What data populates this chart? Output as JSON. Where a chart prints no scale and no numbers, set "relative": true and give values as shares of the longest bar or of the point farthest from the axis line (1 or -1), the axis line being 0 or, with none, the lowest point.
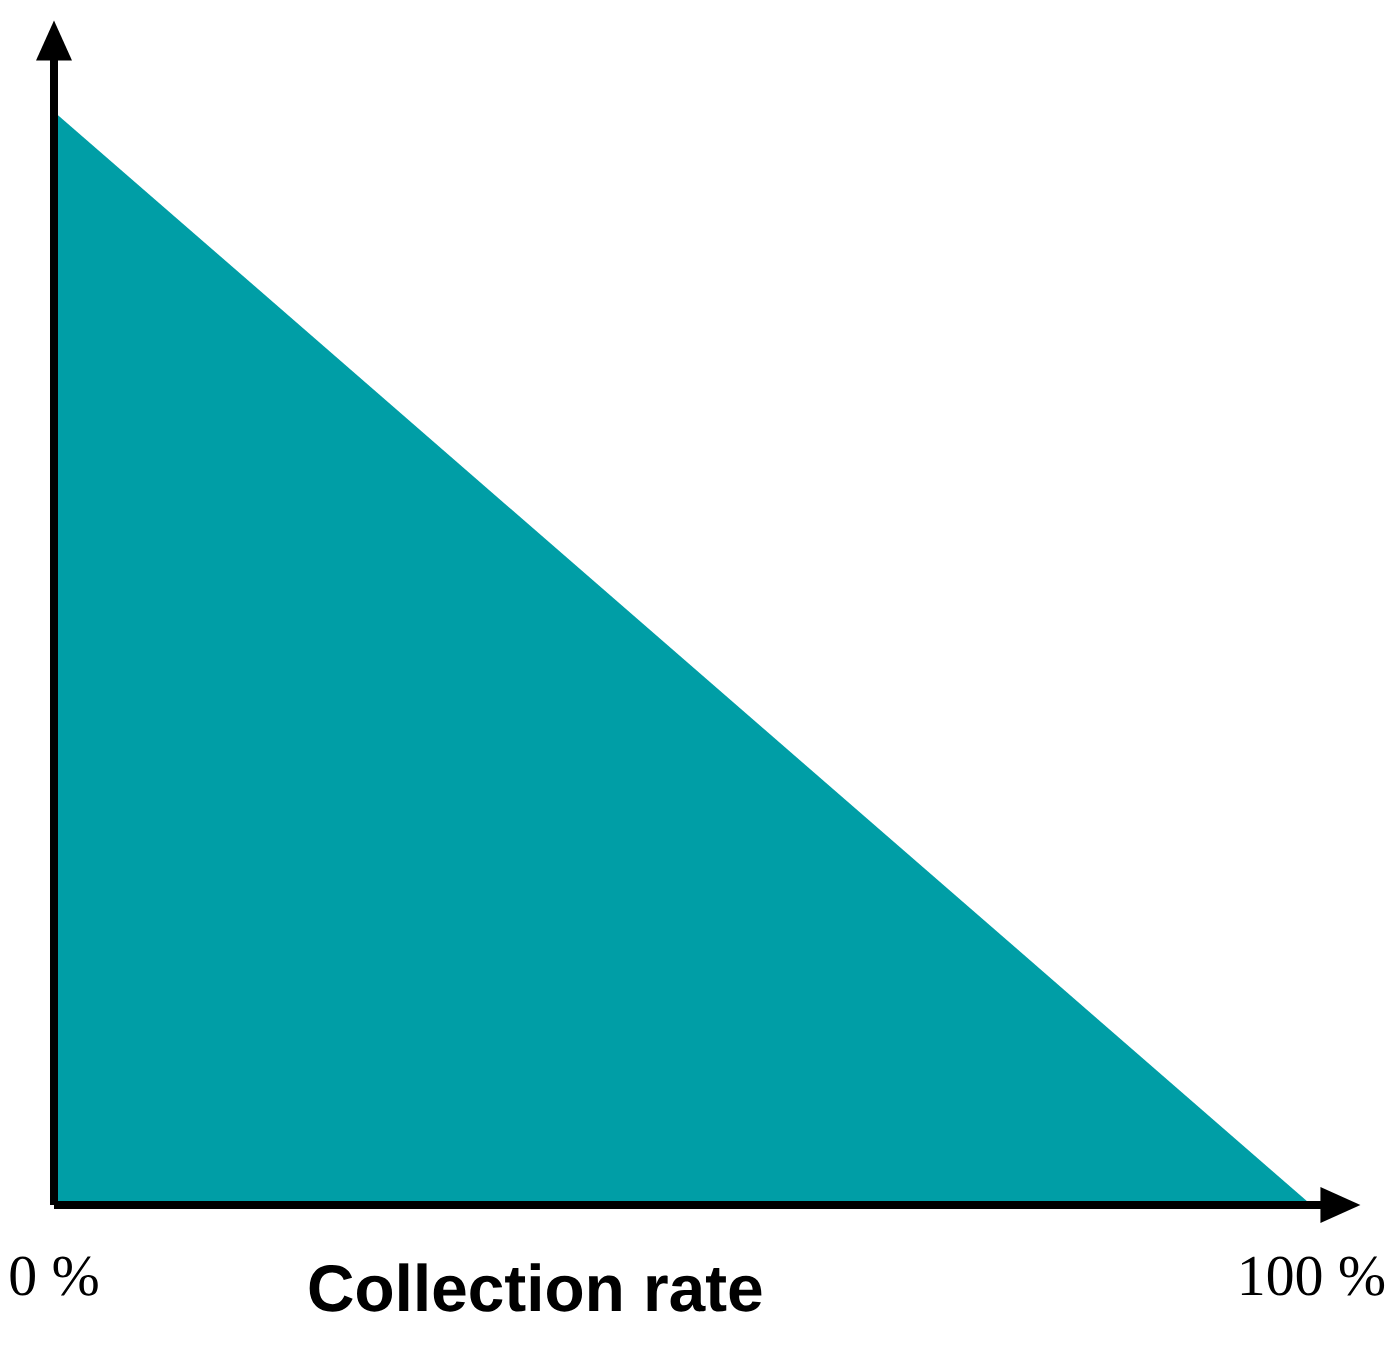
{
  "chart_data": {
    "type": "area",
    "xlabel": "Collection rate",
    "relative": true,
    "x": [
      0,
      100
    ],
    "values": [
      1,
      0
    ],
    "color": "#009ea6",
    "xlim": [
      0,
      101
    ],
    "xticks": [
      {
        "value": 0,
        "label": "0 %"
      },
      {
        "value": 100,
        "label": "100 %"
      }
    ]
  }
}
